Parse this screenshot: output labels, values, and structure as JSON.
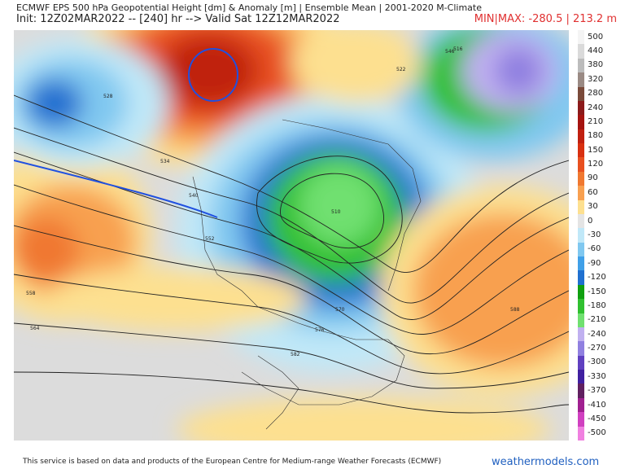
{
  "header": {
    "title": "ECMWF EPS 500 hPa Geopotential Height [dm] & Anomaly [m] | Ensemble Mean | 2001-2020 M-Climate",
    "init": "Init: 12Z02MAR2022 -- [240] hr --> Valid Sat 12Z12MAR2022",
    "minmax": "MIN|MAX: -280.5 | 213.2 m"
  },
  "colorbar": {
    "labels": [
      "500",
      "440",
      "380",
      "320",
      "280",
      "240",
      "210",
      "180",
      "150",
      "120",
      "90",
      "60",
      "30",
      "0",
      "-30",
      "-60",
      "-90",
      "-120",
      "-150",
      "-180",
      "-210",
      "-240",
      "-270",
      "-300",
      "-330",
      "-370",
      "-410",
      "-450",
      "-500"
    ]
  },
  "map": {
    "contour_labels": [
      "516",
      "522",
      "528",
      "534",
      "540",
      "546",
      "552",
      "558",
      "564",
      "570",
      "576",
      "582",
      "588",
      "510"
    ]
  },
  "footer": {
    "text": "This service is based on data and products of the European Centre for Medium-range Weather Forecasts (ECMWF)",
    "site": "weathermodels.com"
  }
}
